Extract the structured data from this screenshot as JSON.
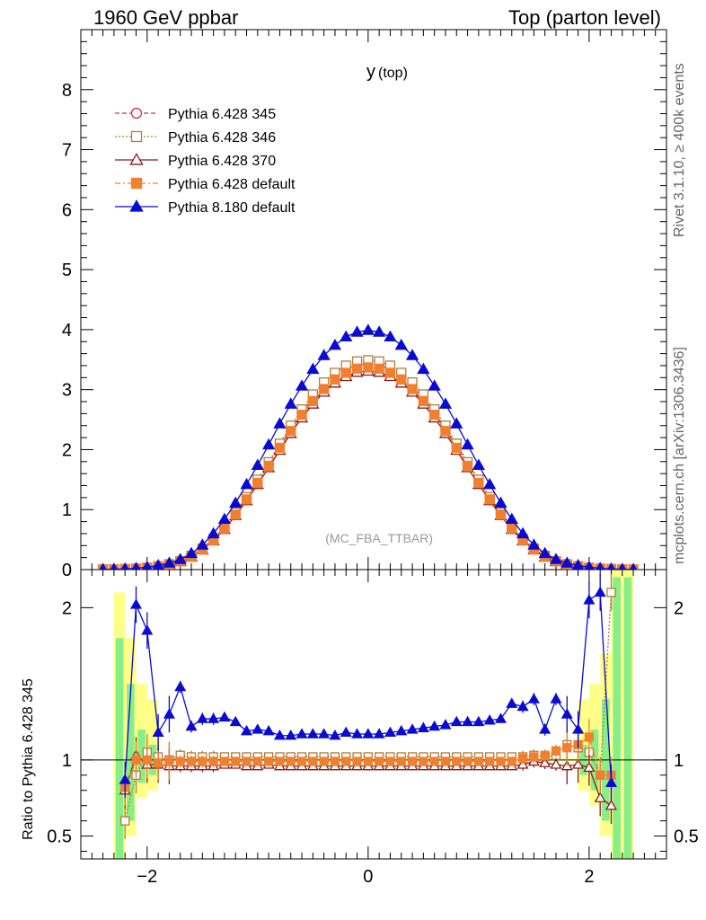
{
  "header": {
    "left": "1960 GeV ppbar",
    "right": "Top (parton level)"
  },
  "side_labels": {
    "rivet": "Rivet 3.1.10, ≥ 400k events",
    "mcplots": "mcplots.cern.ch [arXiv:1306.3436]"
  },
  "chart_data": [
    {
      "type": "line",
      "title_main": "y",
      "title_sub": "(top)",
      "watermark": "(MC_FBA_TTBAR)",
      "xlim": [
        -2.6,
        2.7
      ],
      "ylim": [
        0,
        9
      ],
      "yticks": [
        "0",
        "1",
        "2",
        "3",
        "4",
        "5",
        "6",
        "7",
        "8"
      ],
      "legend_placement": "top-left",
      "x": [
        -2.4,
        -2.3,
        -2.2,
        -2.1,
        -2.0,
        -1.9,
        -1.8,
        -1.7,
        -1.6,
        -1.5,
        -1.4,
        -1.3,
        -1.2,
        -1.1,
        -1.0,
        -0.9,
        -0.8,
        -0.7,
        -0.6,
        -0.5,
        -0.4,
        -0.3,
        -0.2,
        -0.1,
        0.0,
        0.1,
        0.2,
        0.3,
        0.4,
        0.5,
        0.6,
        0.7,
        0.8,
        0.9,
        1.0,
        1.1,
        1.2,
        1.3,
        1.4,
        1.5,
        1.6,
        1.7,
        1.8,
        1.9,
        2.0,
        2.1,
        2.2,
        2.3,
        2.4
      ],
      "series": [
        {
          "name": "Pythia 6.428 345",
          "color": "#c8304f",
          "marker": "circle-open",
          "dash": "5,3",
          "values": [
            0.003,
            0.005,
            0.01,
            0.018,
            0.032,
            0.055,
            0.09,
            0.14,
            0.22,
            0.34,
            0.5,
            0.7,
            0.93,
            1.19,
            1.47,
            1.76,
            2.06,
            2.35,
            2.62,
            2.86,
            3.06,
            3.22,
            3.34,
            3.41,
            3.43,
            3.41,
            3.34,
            3.22,
            3.06,
            2.86,
            2.62,
            2.35,
            2.06,
            1.76,
            1.47,
            1.19,
            0.93,
            0.7,
            0.5,
            0.34,
            0.22,
            0.14,
            0.09,
            0.055,
            0.032,
            0.018,
            0.01,
            0.005,
            0.003
          ]
        },
        {
          "name": "Pythia 6.428 346",
          "color": "#b07d3a",
          "marker": "square-open",
          "dash": "2,2",
          "values": [
            0.003,
            0.005,
            0.01,
            0.018,
            0.032,
            0.056,
            0.09,
            0.14,
            0.23,
            0.35,
            0.51,
            0.71,
            0.95,
            1.21,
            1.5,
            1.79,
            2.1,
            2.4,
            2.67,
            2.92,
            3.12,
            3.28,
            3.4,
            3.47,
            3.49,
            3.47,
            3.4,
            3.28,
            3.12,
            2.92,
            2.67,
            2.4,
            2.1,
            1.79,
            1.5,
            1.21,
            0.95,
            0.71,
            0.51,
            0.35,
            0.23,
            0.14,
            0.09,
            0.056,
            0.032,
            0.018,
            0.01,
            0.005,
            0.003
          ]
        },
        {
          "name": "Pythia 6.428 370",
          "color": "#8b1a1a",
          "marker": "triangle-open",
          "dash": "",
          "values": [
            0.003,
            0.005,
            0.01,
            0.017,
            0.031,
            0.053,
            0.087,
            0.135,
            0.21,
            0.33,
            0.48,
            0.67,
            0.9,
            1.15,
            1.42,
            1.7,
            1.99,
            2.27,
            2.53,
            2.76,
            2.96,
            3.11,
            3.22,
            3.29,
            3.31,
            3.29,
            3.22,
            3.11,
            2.96,
            2.76,
            2.53,
            2.27,
            1.99,
            1.7,
            1.42,
            1.15,
            0.9,
            0.67,
            0.48,
            0.33,
            0.21,
            0.135,
            0.087,
            0.053,
            0.031,
            0.017,
            0.01,
            0.005,
            0.003
          ]
        },
        {
          "name": "Pythia 6.428 default",
          "color": "#f08030",
          "marker": "square-filled",
          "dash": "6,3,2,3",
          "values": [
            0.003,
            0.005,
            0.01,
            0.018,
            0.032,
            0.054,
            0.088,
            0.137,
            0.215,
            0.335,
            0.49,
            0.685,
            0.915,
            1.17,
            1.445,
            1.73,
            2.03,
            2.31,
            2.58,
            2.81,
            3.01,
            3.17,
            3.28,
            3.35,
            3.37,
            3.35,
            3.28,
            3.17,
            3.01,
            2.81,
            2.58,
            2.31,
            2.03,
            1.73,
            1.445,
            1.17,
            0.915,
            0.685,
            0.49,
            0.335,
            0.215,
            0.137,
            0.088,
            0.054,
            0.032,
            0.018,
            0.01,
            0.005,
            0.003
          ]
        },
        {
          "name": "Pythia 8.180 default",
          "color": "#0a0ad2",
          "marker": "triangle-filled",
          "dash": "",
          "values": [
            0.003,
            0.006,
            0.012,
            0.022,
            0.04,
            0.07,
            0.11,
            0.17,
            0.27,
            0.41,
            0.6,
            0.84,
            1.11,
            1.42,
            1.74,
            2.08,
            2.43,
            2.76,
            3.06,
            3.34,
            3.57,
            3.74,
            3.88,
            3.96,
            3.99,
            3.96,
            3.88,
            3.74,
            3.57,
            3.34,
            3.06,
            2.76,
            2.43,
            2.08,
            1.74,
            1.42,
            1.11,
            0.84,
            0.6,
            0.41,
            0.27,
            0.17,
            0.11,
            0.07,
            0.04,
            0.022,
            0.012,
            0.006,
            0.003
          ]
        }
      ]
    },
    {
      "type": "line",
      "ylabel": "Ratio to Pythia 6.428 345",
      "xlim": [
        -2.6,
        2.7
      ],
      "ylim": [
        0.35,
        2.25
      ],
      "yticks": [
        "0.5",
        "1",
        "2"
      ],
      "xticks": [
        "−2",
        "0",
        "2"
      ],
      "x": [
        -2.2,
        -2.1,
        -2.0,
        -1.9,
        -1.8,
        -1.7,
        -1.6,
        -1.5,
        -1.4,
        -1.3,
        -1.2,
        -1.1,
        -1.0,
        -0.9,
        -0.8,
        -0.7,
        -0.6,
        -0.5,
        -0.4,
        -0.3,
        -0.2,
        -0.1,
        0.0,
        0.1,
        0.2,
        0.3,
        0.4,
        0.5,
        0.6,
        0.7,
        0.8,
        0.9,
        1.0,
        1.1,
        1.2,
        1.3,
        1.4,
        1.5,
        1.6,
        1.7,
        1.8,
        1.9,
        2.0,
        2.1,
        2.2
      ],
      "ratios": [
        {
          "name": "Pythia 6.428 346",
          "values": [
            0.6,
            0.9,
            1.05,
            1.02,
            1.0,
            1.03,
            1.02,
            1.02,
            1.02,
            1.02,
            1.02,
            1.02,
            1.02,
            1.02,
            1.02,
            1.02,
            1.02,
            1.02,
            1.02,
            1.02,
            1.02,
            1.02,
            1.02,
            1.02,
            1.02,
            1.02,
            1.02,
            1.02,
            1.02,
            1.02,
            1.02,
            1.02,
            1.02,
            1.02,
            1.02,
            1.02,
            1.02,
            1.03,
            1.02,
            1.03,
            1.1,
            1.08,
            1.05,
            0.9,
            2.1
          ]
        },
        {
          "name": "Pythia 6.428 370",
          "values": [
            0.8,
            1.03,
            0.97,
            0.97,
            0.96,
            0.96,
            0.96,
            0.96,
            0.96,
            0.97,
            0.97,
            0.96,
            0.96,
            0.97,
            0.96,
            0.96,
            0.96,
            0.96,
            0.96,
            0.96,
            0.96,
            0.96,
            0.96,
            0.96,
            0.96,
            0.96,
            0.96,
            0.96,
            0.96,
            0.96,
            0.96,
            0.96,
            0.96,
            0.96,
            0.96,
            0.96,
            0.97,
            0.99,
            0.98,
            0.97,
            0.96,
            0.97,
            0.95,
            0.75,
            0.7
          ]
        },
        {
          "name": "Pythia 6.428 default",
          "values": [
            0.82,
            1.0,
            1.0,
            0.98,
            0.99,
            0.99,
            0.99,
            0.99,
            0.99,
            0.99,
            0.99,
            0.99,
            0.99,
            0.99,
            0.99,
            0.99,
            0.99,
            0.99,
            0.99,
            0.99,
            0.99,
            0.99,
            0.99,
            0.99,
            0.99,
            0.99,
            0.99,
            0.99,
            0.99,
            0.99,
            0.99,
            0.99,
            0.99,
            0.99,
            0.99,
            0.99,
            1.01,
            1.02,
            1.03,
            1.06,
            1.08,
            1.1,
            1.15,
            0.9,
            0.9
          ]
        },
        {
          "name": "Pythia 8.180 default",
          "values": [
            0.87,
            2.02,
            1.85,
            1.18,
            1.3,
            1.48,
            1.22,
            1.27,
            1.27,
            1.28,
            1.25,
            1.19,
            1.2,
            1.19,
            1.16,
            1.16,
            1.17,
            1.17,
            1.17,
            1.16,
            1.18,
            1.17,
            1.17,
            1.17,
            1.18,
            1.19,
            1.2,
            1.21,
            1.22,
            1.23,
            1.25,
            1.25,
            1.25,
            1.26,
            1.27,
            1.37,
            1.35,
            1.4,
            1.2,
            1.4,
            1.3,
            1.2,
            2.05,
            2.1,
            0.85
          ]
        }
      ]
    }
  ]
}
